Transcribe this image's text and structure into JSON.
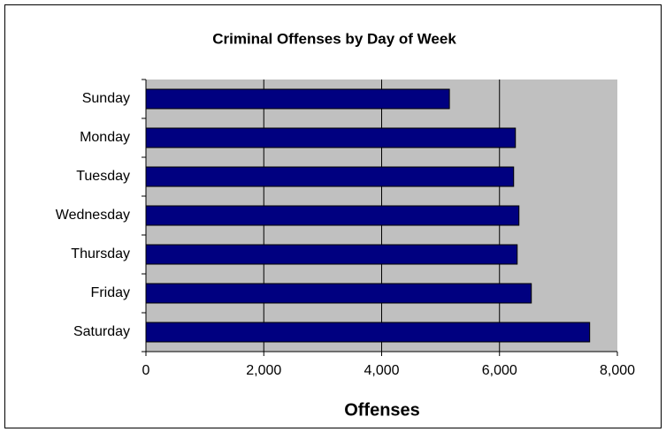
{
  "chart_data": {
    "type": "barh",
    "title": "Criminal Offenses by Day of Week",
    "categories": [
      "Sunday",
      "Monday",
      "Tuesday",
      "Wednesday",
      "Thursday",
      "Friday",
      "Saturday"
    ],
    "values": [
      5150,
      6270,
      6240,
      6330,
      6300,
      6540,
      7530
    ],
    "color": "#000080",
    "xlabel": "Offenses",
    "xlim": [
      0,
      8000
    ],
    "xticks": [
      0,
      {
        "value": 2000,
        "label": "2,000"
      },
      {
        "value": 4000,
        "label": "4,000"
      },
      {
        "value": 6000,
        "label": "6,000"
      },
      {
        "value": 8000,
        "label": "8,000"
      }
    ],
    "grid": true
  }
}
